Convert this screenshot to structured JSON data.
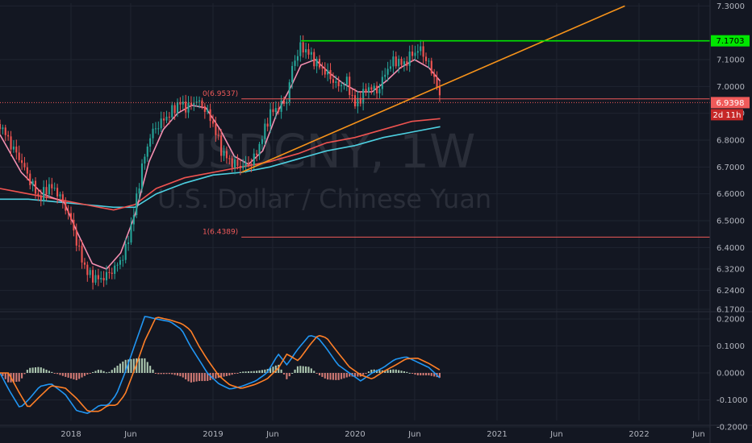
{
  "chart_data": {
    "type": "candlestick",
    "watermark": {
      "symbol": "USDCNY, 1W",
      "description": "U.S. Dollar / Chinese Yuan"
    },
    "colors": {
      "background": "#131722",
      "grid": "#1f2430",
      "up": "#26a69a",
      "down": "#ef5350",
      "ma_pink": "#f48fb1",
      "ma_red": "#ef5350",
      "ma_teal": "#4dd0e1",
      "trendline": "#f7931a",
      "resistance": "#00e600",
      "fib": "#f05a5a",
      "macd": "#2196f3",
      "signal": "#ff7f27",
      "hist_up": "#c8e6c9",
      "hist_down": "#f28b82"
    },
    "price_axis": {
      "ticks": [
        "7.3000",
        "7.1000",
        "7.0000",
        "6.9000",
        "6.8000",
        "6.7000",
        "6.6000",
        "6.5000",
        "6.4000",
        "6.3200",
        "6.2400",
        "6.1700"
      ],
      "tick_values": [
        7.3,
        7.1,
        7.0,
        6.9,
        6.8,
        6.7,
        6.6,
        6.5,
        6.4,
        6.32,
        6.24,
        6.17
      ],
      "ylim": [
        6.17,
        7.31
      ]
    },
    "macd_axis": {
      "ticks": [
        "0.2000",
        "0.1000",
        "0.0000",
        "-0.1000",
        "-0.2000"
      ],
      "tick_values": [
        0.2,
        0.1,
        0.0,
        -0.1,
        -0.2
      ]
    },
    "time_axis": {
      "labels": [
        {
          "label": "2018",
          "t": 2018.0
        },
        {
          "label": "Jun",
          "t": 2018.42
        },
        {
          "label": "2019",
          "t": 2019.0
        },
        {
          "label": "Jun",
          "t": 2019.42
        },
        {
          "label": "2020",
          "t": 2020.0
        },
        {
          "label": "Jun",
          "t": 2020.42
        },
        {
          "label": "2021",
          "t": 2021.0
        },
        {
          "label": "Jun",
          "t": 2021.42
        },
        {
          "label": "2022",
          "t": 2022.0
        },
        {
          "label": "Jun",
          "t": 2022.42
        }
      ],
      "xlim": [
        2017.5,
        2022.5
      ]
    },
    "price_anchors": [
      [
        2017.5,
        6.86
      ],
      [
        2017.58,
        6.78
      ],
      [
        2017.65,
        6.72
      ],
      [
        2017.72,
        6.64
      ],
      [
        2017.78,
        6.58
      ],
      [
        2017.84,
        6.63
      ],
      [
        2017.9,
        6.61
      ],
      [
        2017.96,
        6.55
      ],
      [
        2018.0,
        6.5
      ],
      [
        2018.06,
        6.38
      ],
      [
        2018.12,
        6.3
      ],
      [
        2018.2,
        6.28
      ],
      [
        2018.26,
        6.3
      ],
      [
        2018.32,
        6.33
      ],
      [
        2018.38,
        6.38
      ],
      [
        2018.44,
        6.52
      ],
      [
        2018.5,
        6.7
      ],
      [
        2018.56,
        6.82
      ],
      [
        2018.62,
        6.86
      ],
      [
        2018.7,
        6.9
      ],
      [
        2018.76,
        6.94
      ],
      [
        2018.82,
        6.92
      ],
      [
        2018.88,
        6.95
      ],
      [
        2018.94,
        6.92
      ],
      [
        2019.0,
        6.86
      ],
      [
        2019.06,
        6.76
      ],
      [
        2019.12,
        6.72
      ],
      [
        2019.2,
        6.7
      ],
      [
        2019.28,
        6.72
      ],
      [
        2019.34,
        6.8
      ],
      [
        2019.4,
        6.9
      ],
      [
        2019.46,
        6.92
      ],
      [
        2019.52,
        6.95
      ],
      [
        2019.56,
        7.08
      ],
      [
        2019.62,
        7.15
      ],
      [
        2019.68,
        7.12
      ],
      [
        2019.74,
        7.08
      ],
      [
        2019.8,
        7.05
      ],
      [
        2019.88,
        7.0
      ],
      [
        2019.94,
        7.02
      ],
      [
        2020.0,
        6.93
      ],
      [
        2020.04,
        6.96
      ],
      [
        2020.1,
        7.0
      ],
      [
        2020.16,
        6.98
      ],
      [
        2020.22,
        7.06
      ],
      [
        2020.28,
        7.1
      ],
      [
        2020.34,
        7.08
      ],
      [
        2020.4,
        7.12
      ],
      [
        2020.46,
        7.14
      ],
      [
        2020.52,
        7.08
      ],
      [
        2020.57,
        7.02
      ],
      [
        2020.6,
        6.94
      ]
    ],
    "macd_anchors": [
      [
        2017.5,
        0.0
      ],
      [
        2017.56,
        -0.06
      ],
      [
        2017.64,
        -0.13
      ],
      [
        2017.7,
        -0.1
      ],
      [
        2017.78,
        -0.05
      ],
      [
        2017.86,
        -0.04
      ],
      [
        2017.96,
        -0.08
      ],
      [
        2018.04,
        -0.14
      ],
      [
        2018.12,
        -0.15
      ],
      [
        2018.2,
        -0.12
      ],
      [
        2018.26,
        -0.12
      ],
      [
        2018.32,
        -0.08
      ],
      [
        2018.38,
        0.0
      ],
      [
        2018.46,
        0.12
      ],
      [
        2018.52,
        0.21
      ],
      [
        2018.6,
        0.2
      ],
      [
        2018.7,
        0.19
      ],
      [
        2018.78,
        0.16
      ],
      [
        2018.84,
        0.1
      ],
      [
        2018.9,
        0.05
      ],
      [
        2018.96,
        0.0
      ],
      [
        2019.04,
        -0.04
      ],
      [
        2019.12,
        -0.06
      ],
      [
        2019.2,
        -0.05
      ],
      [
        2019.3,
        -0.03
      ],
      [
        2019.38,
        0.0
      ],
      [
        2019.46,
        0.07
      ],
      [
        2019.52,
        0.03
      ],
      [
        2019.6,
        0.09
      ],
      [
        2019.68,
        0.14
      ],
      [
        2019.74,
        0.13
      ],
      [
        2019.8,
        0.09
      ],
      [
        2019.88,
        0.03
      ],
      [
        2019.96,
        0.0
      ],
      [
        2020.04,
        -0.03
      ],
      [
        2020.12,
        0.0
      ],
      [
        2020.2,
        0.02
      ],
      [
        2020.28,
        0.05
      ],
      [
        2020.36,
        0.06
      ],
      [
        2020.44,
        0.04
      ],
      [
        2020.52,
        0.02
      ],
      [
        2020.6,
        -0.02
      ]
    ],
    "ma_pink_anchors": [
      [
        2017.5,
        6.82
      ],
      [
        2017.65,
        6.68
      ],
      [
        2017.8,
        6.6
      ],
      [
        2017.95,
        6.57
      ],
      [
        2018.05,
        6.45
      ],
      [
        2018.15,
        6.34
      ],
      [
        2018.25,
        6.32
      ],
      [
        2018.35,
        6.38
      ],
      [
        2018.45,
        6.52
      ],
      [
        2018.55,
        6.72
      ],
      [
        2018.65,
        6.84
      ],
      [
        2018.75,
        6.9
      ],
      [
        2018.85,
        6.93
      ],
      [
        2018.95,
        6.92
      ],
      [
        2019.05,
        6.84
      ],
      [
        2019.15,
        6.74
      ],
      [
        2019.25,
        6.71
      ],
      [
        2019.35,
        6.76
      ],
      [
        2019.45,
        6.9
      ],
      [
        2019.55,
        7.0
      ],
      [
        2019.62,
        7.08
      ],
      [
        2019.72,
        7.1
      ],
      [
        2019.82,
        7.05
      ],
      [
        2019.92,
        7.01
      ],
      [
        2020.02,
        6.98
      ],
      [
        2020.12,
        6.98
      ],
      [
        2020.22,
        7.02
      ],
      [
        2020.32,
        7.07
      ],
      [
        2020.42,
        7.1
      ],
      [
        2020.52,
        7.07
      ],
      [
        2020.6,
        7.02
      ]
    ],
    "ma_red_anchors": [
      [
        2017.5,
        6.62
      ],
      [
        2017.7,
        6.6
      ],
      [
        2017.9,
        6.58
      ],
      [
        2018.1,
        6.56
      ],
      [
        2018.3,
        6.54
      ],
      [
        2018.45,
        6.56
      ],
      [
        2018.6,
        6.62
      ],
      [
        2018.8,
        6.66
      ],
      [
        2019.0,
        6.68
      ],
      [
        2019.2,
        6.7
      ],
      [
        2019.4,
        6.72
      ],
      [
        2019.6,
        6.75
      ],
      [
        2019.8,
        6.79
      ],
      [
        2020.0,
        6.81
      ],
      [
        2020.2,
        6.84
      ],
      [
        2020.4,
        6.87
      ],
      [
        2020.6,
        6.88
      ]
    ],
    "ma_teal_anchors": [
      [
        2017.5,
        6.58
      ],
      [
        2017.7,
        6.58
      ],
      [
        2017.9,
        6.57
      ],
      [
        2018.1,
        6.56
      ],
      [
        2018.3,
        6.55
      ],
      [
        2018.45,
        6.55
      ],
      [
        2018.6,
        6.6
      ],
      [
        2018.8,
        6.64
      ],
      [
        2019.0,
        6.67
      ],
      [
        2019.2,
        6.68
      ],
      [
        2019.4,
        6.7
      ],
      [
        2019.6,
        6.73
      ],
      [
        2019.8,
        6.76
      ],
      [
        2020.0,
        6.78
      ],
      [
        2020.2,
        6.81
      ],
      [
        2020.4,
        6.83
      ],
      [
        2020.6,
        6.85
      ]
    ],
    "trendline": {
      "from": [
        2019.2,
        6.68
      ],
      "to": [
        2021.9,
        7.3
      ]
    },
    "resistance": {
      "from": [
        2019.62,
        7.17
      ],
      "value": 7.17,
      "label": "7.1703"
    },
    "fib_levels": [
      {
        "label": "0(6.9537)",
        "value": 6.9537,
        "from_t": 2019.2
      },
      {
        "label": "1(6.4389)",
        "value": 6.4389,
        "from_t": 2019.2
      }
    ],
    "current_price": {
      "label": "6.9398",
      "value": 6.9398,
      "countdown": "2d 11h"
    }
  }
}
